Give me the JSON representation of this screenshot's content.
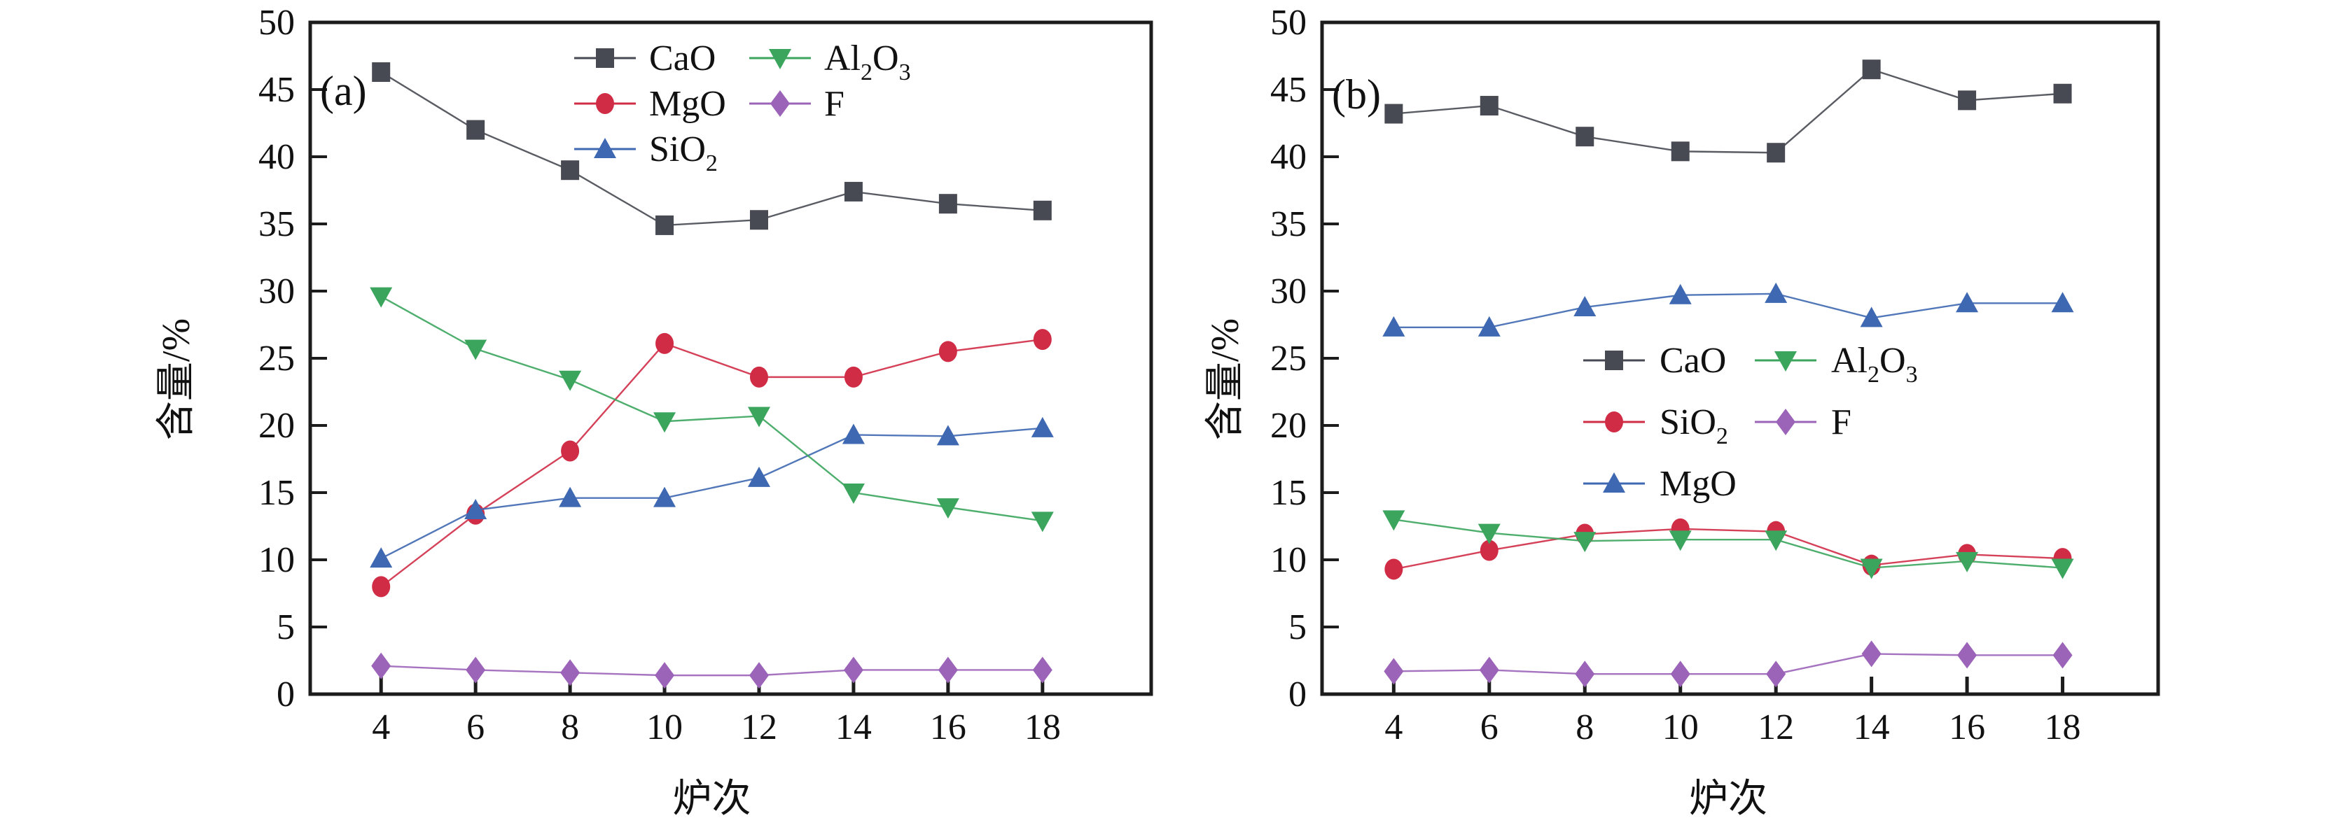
{
  "figure": {
    "background": "#ffffff",
    "axis_color": "#1c1c1c"
  },
  "chart_data": [
    {
      "type": "line",
      "panel_label": "(a)",
      "xlabel": "炉次",
      "ylabel": "含量/%",
      "x": [
        4,
        6,
        8,
        10,
        12,
        14,
        16,
        18
      ],
      "xlim": [
        2.5,
        20.3
      ],
      "ylim": [
        0,
        50
      ],
      "ytick_step": 5,
      "grid": false,
      "legend": {
        "position": "top-center",
        "columns": [
          [
            "CaO",
            "MgO",
            "SiO2"
          ],
          [
            "Al2O3",
            "F"
          ]
        ]
      },
      "series": [
        {
          "name": "CaO",
          "label_parts": [
            [
              "CaO",
              false
            ]
          ],
          "marker": "square",
          "color": "#474a52",
          "values": [
            46.3,
            42.0,
            39.0,
            34.9,
            35.3,
            37.4,
            36.5,
            36.0
          ]
        },
        {
          "name": "MgO",
          "label_parts": [
            [
              "MgO",
              false
            ]
          ],
          "marker": "circle",
          "color": "#d02c46",
          "values": [
            8.0,
            13.4,
            18.1,
            26.1,
            23.6,
            23.6,
            25.5,
            26.4
          ]
        },
        {
          "name": "SiO2",
          "label_parts": [
            [
              "SiO",
              false
            ],
            [
              "2",
              true
            ]
          ],
          "marker": "triangle-up",
          "color": "#3e68b1",
          "values": [
            10.1,
            13.7,
            14.6,
            14.6,
            16.1,
            19.3,
            19.2,
            19.8
          ]
        },
        {
          "name": "Al2O3",
          "label_parts": [
            [
              "Al",
              false
            ],
            [
              "2",
              true
            ],
            [
              "O",
              false
            ],
            [
              "3",
              true
            ]
          ],
          "marker": "triangle-down",
          "color": "#3ba55d",
          "values": [
            29.6,
            25.7,
            23.4,
            20.3,
            20.7,
            15.0,
            13.9,
            12.9
          ]
        },
        {
          "name": "F",
          "label_parts": [
            [
              "F",
              false
            ]
          ],
          "marker": "diamond",
          "color": "#9b64b8",
          "values": [
            2.1,
            1.8,
            1.6,
            1.4,
            1.4,
            1.8,
            1.8,
            1.8
          ]
        }
      ]
    },
    {
      "type": "line",
      "panel_label": "(b)",
      "xlabel": "炉次",
      "ylabel": "含量/%",
      "x": [
        4,
        6,
        8,
        10,
        12,
        14,
        16,
        18
      ],
      "xlim": [
        2.5,
        20.0
      ],
      "ylim": [
        0,
        50
      ],
      "ytick_step": 5,
      "grid": false,
      "legend": {
        "position": "middle-center",
        "columns": [
          [
            "CaO",
            "SiO2",
            "MgO"
          ],
          [
            "Al2O3",
            "F"
          ]
        ]
      },
      "series": [
        {
          "name": "CaO",
          "label_parts": [
            [
              "CaO",
              false
            ]
          ],
          "marker": "square",
          "color": "#474a52",
          "values": [
            43.2,
            43.8,
            41.5,
            40.4,
            40.3,
            46.5,
            44.2,
            44.7
          ]
        },
        {
          "name": "SiO2",
          "label_parts": [
            [
              "SiO",
              false
            ],
            [
              "2",
              true
            ]
          ],
          "marker": "circle",
          "color": "#d02c46",
          "values": [
            9.3,
            10.7,
            11.9,
            12.3,
            12.1,
            9.6,
            10.4,
            10.1
          ]
        },
        {
          "name": "MgO",
          "label_parts": [
            [
              "MgO",
              false
            ]
          ],
          "marker": "triangle-up",
          "color": "#3e68b1",
          "values": [
            27.3,
            27.3,
            28.8,
            29.7,
            29.8,
            28.0,
            29.1,
            29.1
          ]
        },
        {
          "name": "Al2O3",
          "label_parts": [
            [
              "Al",
              false
            ],
            [
              "2",
              true
            ],
            [
              "O",
              false
            ],
            [
              "3",
              true
            ]
          ],
          "marker": "triangle-down",
          "color": "#3ba55d",
          "values": [
            13.0,
            12.0,
            11.4,
            11.5,
            11.5,
            9.4,
            9.9,
            9.4
          ]
        },
        {
          "name": "F",
          "label_parts": [
            [
              "F",
              false
            ]
          ],
          "marker": "diamond",
          "color": "#9b64b8",
          "values": [
            1.7,
            1.8,
            1.5,
            1.5,
            1.5,
            3.0,
            2.9,
            2.9
          ]
        }
      ]
    }
  ]
}
